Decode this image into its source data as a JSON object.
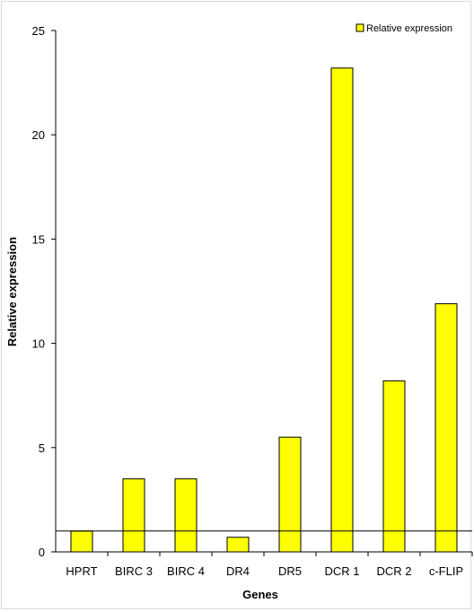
{
  "chart_data": {
    "type": "bar",
    "categories": [
      "HPRT",
      "BIRC 3",
      "BIRC 4",
      "DR4",
      "DR5",
      "DCR 1",
      "DCR 2",
      "c-FLIP"
    ],
    "series": [
      {
        "name": "Relative expression",
        "values": [
          1.0,
          3.5,
          3.5,
          0.7,
          5.5,
          23.2,
          8.2,
          11.9
        ]
      }
    ],
    "xlabel": "Genes",
    "ylabel": "Relative expression",
    "ylim": [
      0,
      25
    ],
    "yticks": [
      "0",
      "5",
      "10",
      "15",
      "20",
      "25"
    ],
    "reference_line": 1,
    "bar_color": "#FFFF00",
    "bar_edge_color": "#000000",
    "grid": false,
    "legend_position": "top-right"
  }
}
